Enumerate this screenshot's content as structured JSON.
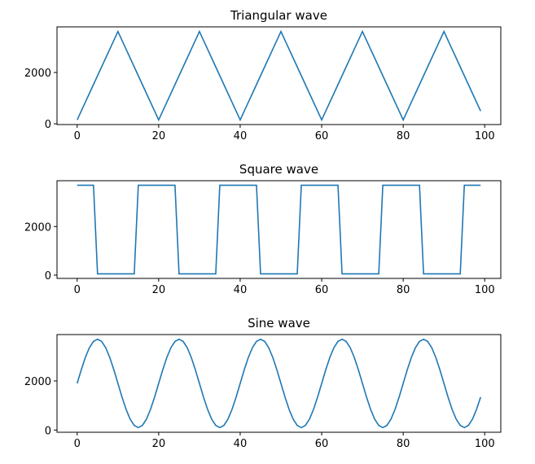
{
  "chart_data": [
    {
      "type": "line",
      "title": "Triangular wave",
      "color": "#1f77b4",
      "x": [
        0,
        1,
        2,
        3,
        4,
        5,
        6,
        7,
        8,
        9,
        10,
        11,
        12,
        13,
        14,
        15,
        16,
        17,
        18,
        19,
        20,
        21,
        22,
        23,
        24,
        25,
        26,
        27,
        28,
        29,
        30,
        31,
        32,
        33,
        34,
        35,
        36,
        37,
        38,
        39,
        40,
        41,
        42,
        43,
        44,
        45,
        46,
        47,
        48,
        49,
        50,
        51,
        52,
        53,
        54,
        55,
        56,
        57,
        58,
        59,
        60,
        61,
        62,
        63,
        64,
        65,
        66,
        67,
        68,
        69,
        70,
        71,
        72,
        73,
        74,
        75,
        76,
        77,
        78,
        79,
        80,
        81,
        82,
        83,
        84,
        85,
        86,
        87,
        88,
        89,
        90,
        91,
        92,
        93,
        94,
        95,
        96,
        97,
        98,
        99
      ],
      "values": [
        150,
        495,
        840,
        1185,
        1530,
        1875,
        2220,
        2565,
        2910,
        3255,
        3600,
        3255,
        2910,
        2565,
        2220,
        1875,
        1530,
        1185,
        840,
        495,
        150,
        495,
        840,
        1185,
        1530,
        1875,
        2220,
        2565,
        2910,
        3255,
        3600,
        3255,
        2910,
        2565,
        2220,
        1875,
        1530,
        1185,
        840,
        495,
        150,
        495,
        840,
        1185,
        1530,
        1875,
        2220,
        2565,
        2910,
        3255,
        3600,
        3255,
        2910,
        2565,
        2220,
        1875,
        1530,
        1185,
        840,
        495,
        150,
        495,
        840,
        1185,
        1530,
        1875,
        2220,
        2565,
        2910,
        3255,
        3600,
        3255,
        2910,
        2565,
        2220,
        1875,
        1530,
        1185,
        840,
        495,
        150,
        495,
        840,
        1185,
        1530,
        1875,
        2220,
        2565,
        2910,
        3255,
        3600,
        3255,
        2910,
        2565,
        2220,
        1875,
        1530,
        1185,
        840,
        495
      ],
      "xlim": [
        -4.95,
        103.95
      ],
      "xticks": [
        0,
        20,
        40,
        60,
        80,
        100
      ],
      "ylim": [
        -30,
        3780
      ],
      "yticks": [
        0,
        2000
      ]
    },
    {
      "type": "line",
      "title": "Square wave",
      "color": "#1f77b4",
      "x": [
        0,
        1,
        2,
        3,
        4,
        5,
        6,
        7,
        8,
        9,
        10,
        11,
        12,
        13,
        14,
        15,
        16,
        17,
        18,
        19,
        20,
        21,
        22,
        23,
        24,
        25,
        26,
        27,
        28,
        29,
        30,
        31,
        32,
        33,
        34,
        35,
        36,
        37,
        38,
        39,
        40,
        41,
        42,
        43,
        44,
        45,
        46,
        47,
        48,
        49,
        50,
        51,
        52,
        53,
        54,
        55,
        56,
        57,
        58,
        59,
        60,
        61,
        62,
        63,
        64,
        65,
        66,
        67,
        68,
        69,
        70,
        71,
        72,
        73,
        74,
        75,
        76,
        77,
        78,
        79,
        80,
        81,
        82,
        83,
        84,
        85,
        86,
        87,
        88,
        89,
        90,
        91,
        92,
        93,
        94,
        95,
        96,
        97,
        98,
        99
      ],
      "values": [
        3700,
        3700,
        3700,
        3700,
        3700,
        50,
        50,
        50,
        50,
        50,
        50,
        50,
        50,
        50,
        50,
        3700,
        3700,
        3700,
        3700,
        3700,
        3700,
        3700,
        3700,
        3700,
        3700,
        50,
        50,
        50,
        50,
        50,
        50,
        50,
        50,
        50,
        50,
        3700,
        3700,
        3700,
        3700,
        3700,
        3700,
        3700,
        3700,
        3700,
        3700,
        50,
        50,
        50,
        50,
        50,
        50,
        50,
        50,
        50,
        50,
        3700,
        3700,
        3700,
        3700,
        3700,
        3700,
        3700,
        3700,
        3700,
        3700,
        50,
        50,
        50,
        50,
        50,
        50,
        50,
        50,
        50,
        50,
        3700,
        3700,
        3700,
        3700,
        3700,
        3700,
        3700,
        3700,
        3700,
        3700,
        50,
        50,
        50,
        50,
        50,
        50,
        50,
        50,
        50,
        50,
        3700,
        3700,
        3700,
        3700,
        3700
      ],
      "xlim": [
        -4.95,
        103.95
      ],
      "xticks": [
        0,
        20,
        40,
        60,
        80,
        100
      ],
      "ylim": [
        -135,
        3885
      ],
      "yticks": [
        0,
        2000
      ]
    },
    {
      "type": "line",
      "title": "Sine wave",
      "color": "#1f77b4",
      "x": [
        0,
        1,
        2,
        3,
        4,
        5,
        6,
        7,
        8,
        9,
        10,
        11,
        12,
        13,
        14,
        15,
        16,
        17,
        18,
        19,
        20,
        21,
        22,
        23,
        24,
        25,
        26,
        27,
        28,
        29,
        30,
        31,
        32,
        33,
        34,
        35,
        36,
        37,
        38,
        39,
        40,
        41,
        42,
        43,
        44,
        45,
        46,
        47,
        48,
        49,
        50,
        51,
        52,
        53,
        54,
        55,
        56,
        57,
        58,
        59,
        60,
        61,
        62,
        63,
        64,
        65,
        66,
        67,
        68,
        69,
        70,
        71,
        72,
        73,
        74,
        75,
        76,
        77,
        78,
        79,
        80,
        81,
        82,
        83,
        84,
        85,
        86,
        87,
        88,
        89,
        90,
        91,
        92,
        93,
        94,
        95,
        96,
        97,
        98,
        99
      ],
      "values": [
        1900,
        2456,
        2958,
        3356,
        3612,
        3700,
        3612,
        3356,
        2958,
        2456,
        1900,
        1344,
        842,
        444,
        188,
        100,
        188,
        444,
        842,
        1344,
        1900,
        2456,
        2958,
        3356,
        3612,
        3700,
        3612,
        3356,
        2958,
        2456,
        1900,
        1344,
        842,
        444,
        188,
        100,
        188,
        444,
        842,
        1344,
        1900,
        2456,
        2958,
        3356,
        3612,
        3700,
        3612,
        3356,
        2958,
        2456,
        1900,
        1344,
        842,
        444,
        188,
        100,
        188,
        444,
        842,
        1344,
        1900,
        2456,
        2958,
        3356,
        3612,
        3700,
        3612,
        3356,
        2958,
        2456,
        1900,
        1344,
        842,
        444,
        188,
        100,
        188,
        444,
        842,
        1344,
        1900,
        2456,
        2958,
        3356,
        3612,
        3700,
        3612,
        3356,
        2958,
        2456,
        1900,
        1344,
        842,
        444,
        188,
        100,
        188,
        444,
        842,
        1344
      ],
      "xlim": [
        -4.95,
        103.95
      ],
      "xticks": [
        0,
        20,
        40,
        60,
        80,
        100
      ],
      "ylim": [
        -90,
        3890
      ],
      "yticks": [
        0,
        2000
      ]
    }
  ]
}
